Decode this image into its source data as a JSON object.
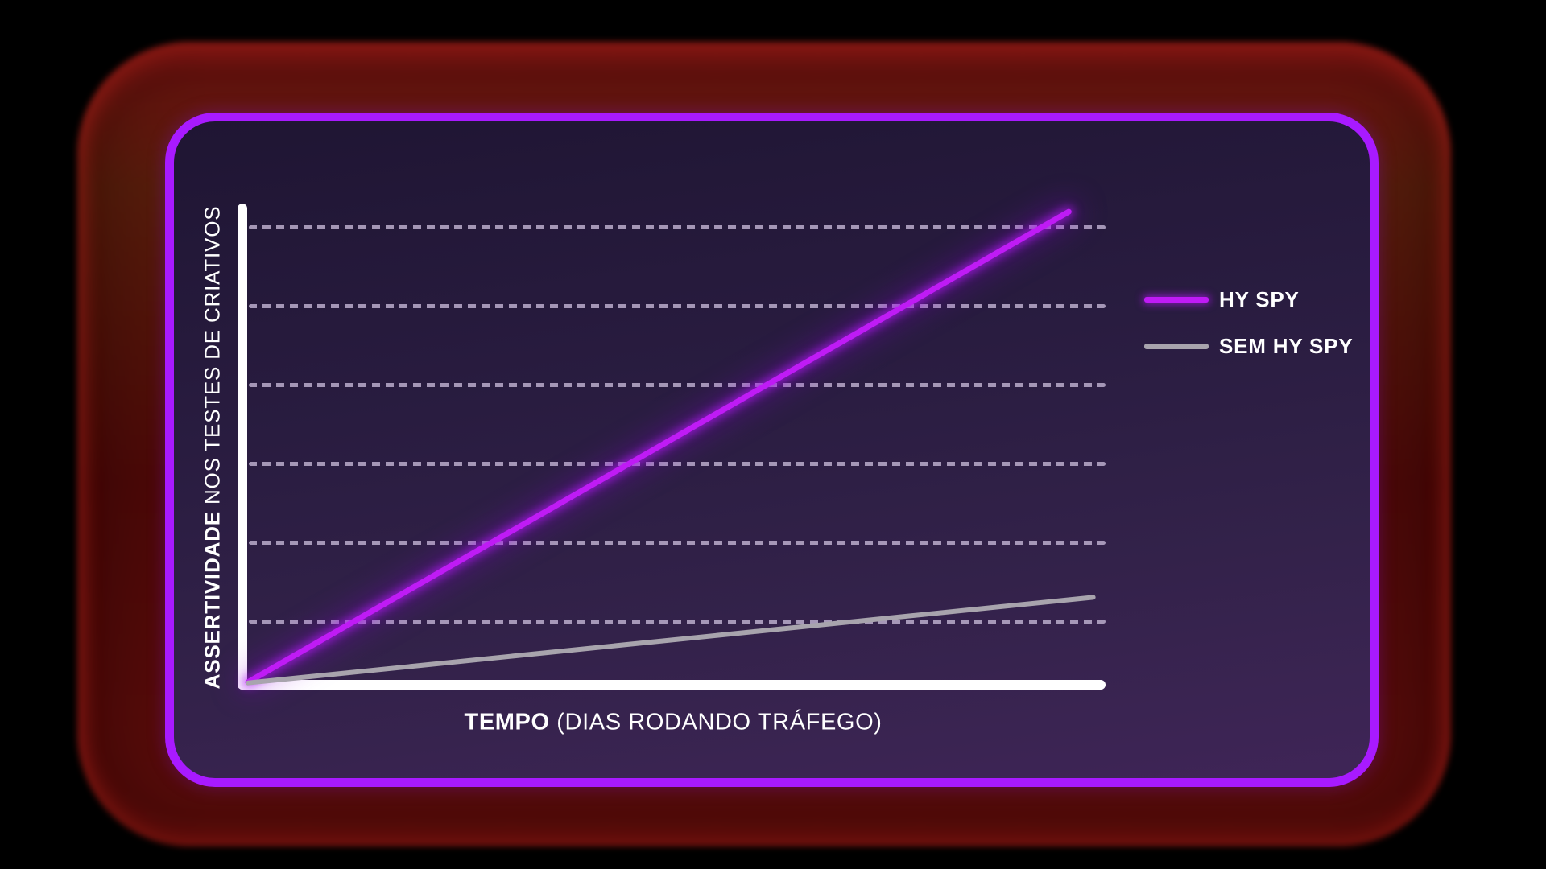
{
  "colors": {
    "page_background": "#000000",
    "glow_red": "#5a0b0b",
    "panel_border": "#a81aff",
    "panel_bg_top": "#1f1533",
    "panel_bg_bottom": "#3f2557",
    "axis": "#ffffff",
    "gridline": "#baaccb",
    "text": "#ffffff"
  },
  "axis_labels": {
    "y_bold": "ASSERTIVIDADE",
    "y_rest": " NOS TESTES DE CRIATIVOS",
    "x_bold": "TEMPO",
    "x_rest": " (DIAS RODANDO TRÁFEGO)"
  },
  "chart_data": {
    "type": "line",
    "title": "",
    "xlabel": "TEMPO (DIAS RODANDO TRÁFEGO)",
    "ylabel": "ASSERTIVIDADE NOS TESTES DE CRIATIVOS",
    "xlim": [
      0,
      10
    ],
    "ylim": [
      0,
      100
    ],
    "x_unit": "dias rodando tráfego",
    "grid": "horizontal-dashed",
    "gridline_count": 6,
    "legend_position": "right",
    "axis_ticks_labeled": false,
    "series": [
      {
        "name": "HY SPY",
        "color": "#bf1bf5",
        "x": [
          0,
          9.6
        ],
        "values": [
          0,
          99
        ]
      },
      {
        "name": "SEM HY SPY",
        "color": "#a8a4ad",
        "x": [
          0,
          9.88
        ],
        "values": [
          0,
          18
        ]
      }
    ]
  }
}
